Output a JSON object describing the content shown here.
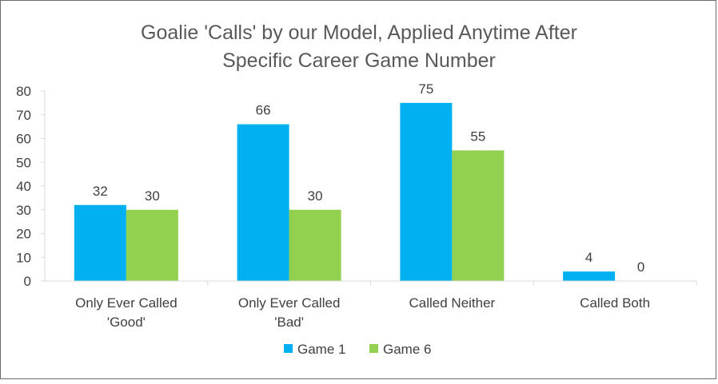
{
  "chart_data": {
    "type": "bar",
    "title_line1": "Goalie 'Calls' by our Model, Applied Anytime After",
    "title_line2": "Specific Career Game Number",
    "categories": [
      [
        "Only Ever Called",
        "'Good'"
      ],
      [
        "Only Ever Called",
        "'Bad'"
      ],
      [
        "Called Neither"
      ],
      [
        "Called Both"
      ]
    ],
    "series": [
      {
        "name": "Game 1",
        "values": [
          32,
          66,
          75,
          4
        ],
        "color": "#00b0f0"
      },
      {
        "name": "Game 6",
        "values": [
          30,
          30,
          55,
          0
        ],
        "color": "#92d050"
      }
    ],
    "ylim": [
      0,
      80
    ],
    "yticks": [
      "0",
      "10",
      "20",
      "30",
      "40",
      "50",
      "60",
      "70",
      "80"
    ],
    "grid": false,
    "legend_position": "bottom",
    "axis_color": "#d9d9d9",
    "text_color": "#404040",
    "title_color": "#595959"
  }
}
